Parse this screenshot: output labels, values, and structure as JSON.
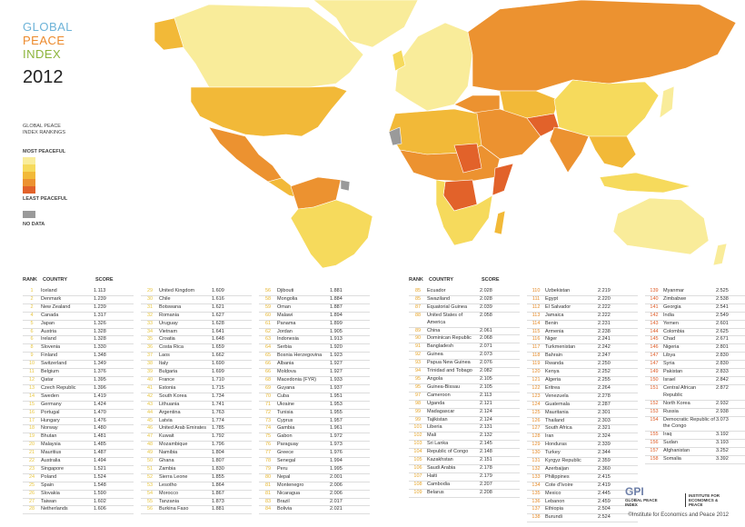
{
  "header": {
    "title_lines": [
      "GLOBAL",
      "PEACE",
      "INDEX"
    ],
    "year": "2012"
  },
  "legend": {
    "title": "GLOBAL PEACE INDEX RANKINGS",
    "most": "MOST PEACEFUL",
    "least": "LEAST PEACEFUL",
    "no_data": "NO DATA",
    "colors": [
      "#f9ec9a",
      "#f6da5c",
      "#f2b938",
      "#ec9230",
      "#e2622a"
    ],
    "no_data_color": "#9a9a9a"
  },
  "table": {
    "headers": [
      "RANK",
      "COUNTRY",
      "SCORE"
    ],
    "rows": [
      [
        1,
        "Iceland",
        "1.113"
      ],
      [
        2,
        "Denmark",
        "1.239"
      ],
      [
        2,
        "New Zealand",
        "1.239"
      ],
      [
        4,
        "Canada",
        "1.317"
      ],
      [
        5,
        "Japan",
        "1.326"
      ],
      [
        6,
        "Austria",
        "1.328"
      ],
      [
        6,
        "Ireland",
        "1.328"
      ],
      [
        8,
        "Slovenia",
        "1.330"
      ],
      [
        9,
        "Finland",
        "1.348"
      ],
      [
        10,
        "Switzerland",
        "1.349"
      ],
      [
        11,
        "Belgium",
        "1.376"
      ],
      [
        12,
        "Qatar",
        "1.395"
      ],
      [
        13,
        "Czech Republic",
        "1.396"
      ],
      [
        14,
        "Sweden",
        "1.419"
      ],
      [
        15,
        "Germany",
        "1.424"
      ],
      [
        16,
        "Portugal",
        "1.470"
      ],
      [
        17,
        "Hungary",
        "1.476"
      ],
      [
        18,
        "Norway",
        "1.480"
      ],
      [
        19,
        "Bhutan",
        "1.481"
      ],
      [
        20,
        "Malaysia",
        "1.485"
      ],
      [
        21,
        "Mauritius",
        "1.487"
      ],
      [
        22,
        "Australia",
        "1.494"
      ],
      [
        23,
        "Singapore",
        "1.521"
      ],
      [
        24,
        "Poland",
        "1.524"
      ],
      [
        25,
        "Spain",
        "1.548"
      ],
      [
        26,
        "Slovakia",
        "1.590"
      ],
      [
        27,
        "Taiwan",
        "1.602"
      ],
      [
        28,
        "Netherlands",
        "1.606"
      ],
      [
        29,
        "United Kingdom",
        "1.609"
      ],
      [
        30,
        "Chile",
        "1.616"
      ],
      [
        31,
        "Botswana",
        "1.621"
      ],
      [
        32,
        "Romania",
        "1.627"
      ],
      [
        33,
        "Uruguay",
        "1.628"
      ],
      [
        34,
        "Vietnam",
        "1.641"
      ],
      [
        35,
        "Croatia",
        "1.648"
      ],
      [
        36,
        "Costa Rica",
        "1.659"
      ],
      [
        37,
        "Laos",
        "1.662"
      ],
      [
        38,
        "Italy",
        "1.690"
      ],
      [
        39,
        "Bulgaria",
        "1.699"
      ],
      [
        40,
        "France",
        "1.710"
      ],
      [
        41,
        "Estonia",
        "1.715"
      ],
      [
        42,
        "South Korea",
        "1.734"
      ],
      [
        43,
        "Lithuania",
        "1.741"
      ],
      [
        44,
        "Argentina",
        "1.763"
      ],
      [
        45,
        "Latvia",
        "1.774"
      ],
      [
        46,
        "United Arab Emirates",
        "1.785"
      ],
      [
        47,
        "Kuwait",
        "1.792"
      ],
      [
        48,
        "Mozambique",
        "1.796"
      ],
      [
        49,
        "Namibia",
        "1.804"
      ],
      [
        50,
        "Ghana",
        "1.807"
      ],
      [
        51,
        "Zambia",
        "1.830"
      ],
      [
        52,
        "Sierra Leone",
        "1.855"
      ],
      [
        53,
        "Lesotho",
        "1.864"
      ],
      [
        54,
        "Morocco",
        "1.867"
      ],
      [
        55,
        "Tanzania",
        "1.873"
      ],
      [
        56,
        "Burkina Faso",
        "1.881"
      ],
      [
        56,
        "Djibouti",
        "1.881"
      ],
      [
        58,
        "Mongolia",
        "1.884"
      ],
      [
        59,
        "Oman",
        "1.887"
      ],
      [
        60,
        "Malawi",
        "1.894"
      ],
      [
        61,
        "Panama",
        "1.899"
      ],
      [
        62,
        "Jordan",
        "1.905"
      ],
      [
        63,
        "Indonesia",
        "1.913"
      ],
      [
        64,
        "Serbia",
        "1.920"
      ],
      [
        65,
        "Bosnia Herzegovina",
        "1.923"
      ],
      [
        66,
        "Albania",
        "1.927"
      ],
      [
        66,
        "Moldova",
        "1.927"
      ],
      [
        68,
        "Macedonia (FYR)",
        "1.933"
      ],
      [
        69,
        "Guyana",
        "1.937"
      ],
      [
        70,
        "Cuba",
        "1.951"
      ],
      [
        71,
        "Ukraine",
        "1.953"
      ],
      [
        72,
        "Tunisia",
        "1.955"
      ],
      [
        73,
        "Cyprus",
        "1.957"
      ],
      [
        74,
        "Gambia",
        "1.961"
      ],
      [
        75,
        "Gabon",
        "1.972"
      ],
      [
        76,
        "Paraguay",
        "1.973"
      ],
      [
        77,
        "Greece",
        "1.976"
      ],
      [
        78,
        "Senegal",
        "1.994"
      ],
      [
        79,
        "Peru",
        "1.995"
      ],
      [
        80,
        "Nepal",
        "2.001"
      ],
      [
        81,
        "Montenegro",
        "2.006"
      ],
      [
        81,
        "Nicaragua",
        "2.006"
      ],
      [
        83,
        "Brazil",
        "2.017"
      ],
      [
        84,
        "Bolivia",
        "2.021"
      ],
      [
        85,
        "Ecuador",
        "2.028"
      ],
      [
        85,
        "Swaziland",
        "2.028"
      ],
      [
        87,
        "Equatorial Guinea",
        "2.039"
      ],
      [
        88,
        "United States of America",
        "2.058"
      ],
      [
        89,
        "China",
        "2.061"
      ],
      [
        90,
        "Dominican Republic",
        "2.068"
      ],
      [
        91,
        "Bangladesh",
        "2.071"
      ],
      [
        92,
        "Guinea",
        "2.073"
      ],
      [
        93,
        "Papua New Guinea",
        "2.076"
      ],
      [
        94,
        "Trinidad and Tobago",
        "2.082"
      ],
      [
        95,
        "Angola",
        "2.105"
      ],
      [
        95,
        "Guinea-Bissau",
        "2.105"
      ],
      [
        97,
        "Cameroon",
        "2.113"
      ],
      [
        98,
        "Uganda",
        "2.121"
      ],
      [
        99,
        "Madagascar",
        "2.124"
      ],
      [
        99,
        "Tajikistan",
        "2.124"
      ],
      [
        101,
        "Liberia",
        "2.131"
      ],
      [
        102,
        "Mali",
        "2.132"
      ],
      [
        103,
        "Sri Lanka",
        "2.145"
      ],
      [
        104,
        "Republic of Congo",
        "2.148"
      ],
      [
        105,
        "Kazakhstan",
        "2.151"
      ],
      [
        106,
        "Saudi Arabia",
        "2.178"
      ],
      [
        107,
        "Haiti",
        "2.179"
      ],
      [
        108,
        "Cambodia",
        "2.207"
      ],
      [
        109,
        "Belarus",
        "2.208"
      ],
      [
        110,
        "Uzbekistan",
        "2.219"
      ],
      [
        111,
        "Egypt",
        "2.220"
      ],
      [
        112,
        "El Salvador",
        "2.222"
      ],
      [
        113,
        "Jamaica",
        "2.222"
      ],
      [
        114,
        "Benin",
        "2.231"
      ],
      [
        115,
        "Armenia",
        "2.238"
      ],
      [
        116,
        "Niger",
        "2.241"
      ],
      [
        117,
        "Turkmenistan",
        "2.242"
      ],
      [
        118,
        "Bahrain",
        "2.247"
      ],
      [
        119,
        "Rwanda",
        "2.250"
      ],
      [
        120,
        "Kenya",
        "2.252"
      ],
      [
        121,
        "Algeria",
        "2.255"
      ],
      [
        122,
        "Eritrea",
        "2.264"
      ],
      [
        123,
        "Venezuela",
        "2.278"
      ],
      [
        124,
        "Guatemala",
        "2.287"
      ],
      [
        125,
        "Mauritania",
        "2.301"
      ],
      [
        126,
        "Thailand",
        "2.303"
      ],
      [
        127,
        "South Africa",
        "2.321"
      ],
      [
        128,
        "Iran",
        "2.324"
      ],
      [
        129,
        "Honduras",
        "2.339"
      ],
      [
        130,
        "Turkey",
        "2.344"
      ],
      [
        131,
        "Kyrgyz Republic",
        "2.359"
      ],
      [
        132,
        "Azerbaijan",
        "2.360"
      ],
      [
        133,
        "Philippines",
        "2.415"
      ],
      [
        134,
        "Cote d'Ivoire",
        "2.419"
      ],
      [
        135,
        "Mexico",
        "2.445"
      ],
      [
        136,
        "Lebanon",
        "2.459"
      ],
      [
        137,
        "Ethiopia",
        "2.504"
      ],
      [
        138,
        "Burundi",
        "2.524"
      ],
      [
        139,
        "Myanmar",
        "2.525"
      ],
      [
        140,
        "Zimbabwe",
        "2.538"
      ],
      [
        141,
        "Georgia",
        "2.541"
      ],
      [
        142,
        "India",
        "2.549"
      ],
      [
        143,
        "Yemen",
        "2.601"
      ],
      [
        144,
        "Colombia",
        "2.625"
      ],
      [
        145,
        "Chad",
        "2.671"
      ],
      [
        146,
        "Nigeria",
        "2.801"
      ],
      [
        147,
        "Libya",
        "2.830"
      ],
      [
        147,
        "Syria",
        "2.830"
      ],
      [
        149,
        "Pakistan",
        "2.833"
      ],
      [
        150,
        "Israel",
        "2.842"
      ],
      [
        151,
        "Central African Republic",
        "2.872"
      ],
      [
        152,
        "North Korea",
        "2.932"
      ],
      [
        153,
        "Russia",
        "2.938"
      ],
      [
        154,
        "Democratic Republic of the Congo",
        "3.073"
      ],
      [
        155,
        "Iraq",
        "3.192"
      ],
      [
        156,
        "Sudan",
        "3.193"
      ],
      [
        157,
        "Afghanistan",
        "3.252"
      ],
      [
        158,
        "Somalia",
        "3.392"
      ]
    ]
  },
  "logo": {
    "mark": "GPI",
    "left": "GLOBAL PEACE INDEX",
    "right": "INSTITUTE FOR ECONOMICS & PEACE"
  },
  "footer": "©Institute for Economics and Peace 2012"
}
